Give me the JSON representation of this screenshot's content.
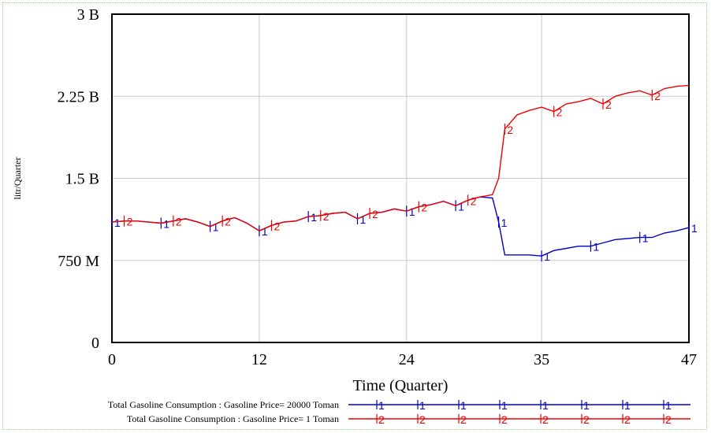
{
  "chart_data": {
    "type": "line",
    "title": "",
    "xlabel": "Time (Quarter)",
    "ylabel": "litr/Quarter",
    "xlim": [
      0,
      47
    ],
    "ylim": [
      0,
      3000000000
    ],
    "x_ticks": [
      0,
      12,
      24,
      35,
      47
    ],
    "x_tick_labels": [
      "0",
      "12",
      "24",
      "35",
      "47"
    ],
    "y_ticks": [
      0,
      750000000,
      1500000000,
      2250000000,
      3000000000
    ],
    "y_tick_labels": [
      "0",
      "750 M",
      "1.5 B",
      "2.25 B",
      "3 B"
    ],
    "grid": true,
    "legend_position": "bottom",
    "series": [
      {
        "name": "Total Gasoline Consumption : Gasoline Price= 20000 Toman",
        "marker": "1",
        "color": "#0000cc",
        "x": [
          0,
          1,
          2,
          3,
          4,
          5,
          6,
          7,
          8,
          9,
          10,
          11,
          12,
          13,
          14,
          15,
          16,
          17,
          18,
          19,
          20,
          21,
          22,
          23,
          24,
          25,
          26,
          27,
          28,
          29,
          30,
          31,
          31.5,
          32,
          33,
          34,
          35,
          36,
          37,
          38,
          39,
          40,
          41,
          42,
          43,
          44,
          45,
          46,
          47
        ],
        "values": [
          1100000000,
          1110000000,
          1110000000,
          1100000000,
          1090000000,
          1110000000,
          1130000000,
          1100000000,
          1060000000,
          1110000000,
          1140000000,
          1090000000,
          1020000000,
          1070000000,
          1100000000,
          1110000000,
          1150000000,
          1160000000,
          1180000000,
          1190000000,
          1130000000,
          1180000000,
          1190000000,
          1220000000,
          1200000000,
          1240000000,
          1260000000,
          1290000000,
          1250000000,
          1300000000,
          1330000000,
          1320000000,
          1100000000,
          800000000,
          800000000,
          800000000,
          790000000,
          840000000,
          860000000,
          880000000,
          880000000,
          910000000,
          940000000,
          950000000,
          960000000,
          960000000,
          1000000000,
          1020000000,
          1050000000
        ]
      },
      {
        "name": "Total Gasoline Consumption : Gasoline Price= 1 Toman",
        "marker": "2",
        "color": "#ee0000",
        "x": [
          0,
          1,
          2,
          3,
          4,
          5,
          6,
          7,
          8,
          9,
          10,
          11,
          12,
          13,
          14,
          15,
          16,
          17,
          18,
          19,
          20,
          21,
          22,
          23,
          24,
          25,
          26,
          27,
          28,
          29,
          30,
          31,
          31.5,
          32,
          33,
          34,
          35,
          36,
          37,
          38,
          39,
          40,
          41,
          42,
          43,
          44,
          45,
          46,
          47
        ],
        "values": [
          1100000000,
          1110000000,
          1110000000,
          1100000000,
          1090000000,
          1110000000,
          1130000000,
          1100000000,
          1060000000,
          1110000000,
          1140000000,
          1090000000,
          1020000000,
          1070000000,
          1100000000,
          1110000000,
          1150000000,
          1160000000,
          1180000000,
          1190000000,
          1130000000,
          1180000000,
          1190000000,
          1220000000,
          1200000000,
          1240000000,
          1260000000,
          1290000000,
          1250000000,
          1300000000,
          1330000000,
          1350000000,
          1500000000,
          1950000000,
          2080000000,
          2120000000,
          2150000000,
          2110000000,
          2180000000,
          2200000000,
          2230000000,
          2180000000,
          2250000000,
          2280000000,
          2300000000,
          2260000000,
          2320000000,
          2340000000,
          2350000000
        ]
      }
    ]
  }
}
